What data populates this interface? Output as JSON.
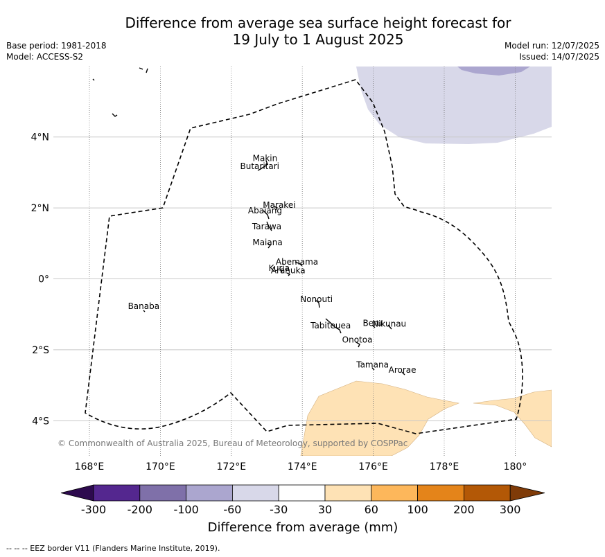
{
  "header": {
    "title_line1": "Difference from average sea surface height forecast for",
    "title_line2": "19 July to 1 August 2025",
    "base_period": "Base period: 1981-2018",
    "model": "Model: ACCESS-S2",
    "model_run": "Model run: 12/07/2025",
    "issued": "Issued: 14/07/2025"
  },
  "map": {
    "lon_ticks": [
      "168°E",
      "170°E",
      "172°E",
      "174°E",
      "176°E",
      "178°E",
      "180°"
    ],
    "lat_ticks": [
      "4°N",
      "2°N",
      "0°",
      "2°S",
      "4°S"
    ],
    "copyright": "© Commonwealth of Australia 2025, Bureau of Meteorology, supported by COSPPac",
    "islands": [
      {
        "name": "Makin",
        "lon": 172.95,
        "lat": 3.32
      },
      {
        "name": "Butaritari",
        "lon": 172.8,
        "lat": 3.1
      },
      {
        "name": "Marakei",
        "lon": 173.35,
        "lat": 2.0
      },
      {
        "name": "Abaiang",
        "lon": 172.95,
        "lat": 1.85
      },
      {
        "name": "Tarawa",
        "lon": 173.0,
        "lat": 1.4
      },
      {
        "name": "Maiana",
        "lon": 173.02,
        "lat": 0.95
      },
      {
        "name": "Abemama",
        "lon": 173.85,
        "lat": 0.4
      },
      {
        "name": "Kuria",
        "lon": 173.35,
        "lat": 0.22
      },
      {
        "name": "Aranuka",
        "lon": 173.6,
        "lat": 0.16
      },
      {
        "name": "Nonouti",
        "lon": 174.4,
        "lat": -0.65
      },
      {
        "name": "Banaba",
        "lon": 169.53,
        "lat": -0.85
      },
      {
        "name": "Beru",
        "lon": 175.98,
        "lat": -1.33
      },
      {
        "name": "Nikunau",
        "lon": 176.45,
        "lat": -1.35
      },
      {
        "name": "Tabiteuea",
        "lon": 174.8,
        "lat": -1.4
      },
      {
        "name": "Onotoa",
        "lon": 175.55,
        "lat": -1.8
      },
      {
        "name": "Tamana",
        "lon": 175.98,
        "lat": -2.5
      },
      {
        "name": "Arorae",
        "lon": 176.82,
        "lat": -2.65
      }
    ]
  },
  "colorbar": {
    "label": "Difference from average (mm)",
    "ticks": [
      "-300",
      "-200",
      "-100",
      "-60",
      "-30",
      "30",
      "60",
      "100",
      "200",
      "300"
    ],
    "colors": [
      "#2d0a4e",
      "#54278f",
      "#7f70a9",
      "#aba6cf",
      "#d8d8e9",
      "#ffffff",
      "#fee2b5",
      "#fdb75b",
      "#e4841a",
      "#b35806",
      "#7f3b08"
    ]
  },
  "footer": {
    "eez_note": "--  --  -- EEZ border V11 (Flanders Marine Institute, 2019)."
  }
}
